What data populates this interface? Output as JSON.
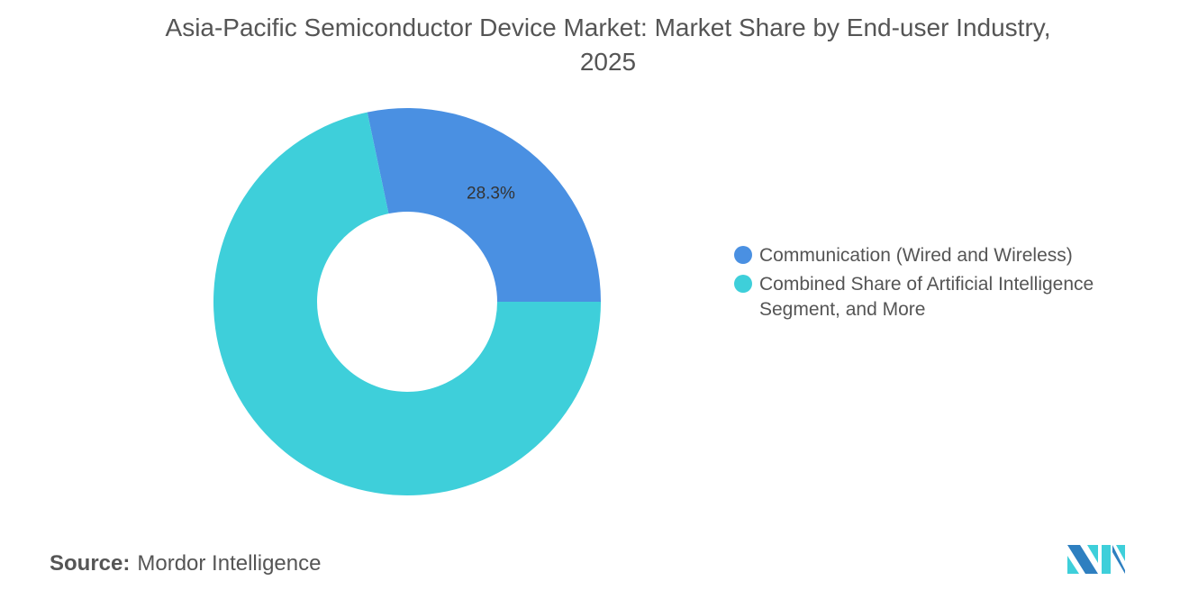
{
  "chart_data": {
    "type": "pie",
    "donut": true,
    "title": "Asia-Pacific Semiconductor Device Market: Market Share by End-user Industry, 2025",
    "series": [
      {
        "name": "Communication (Wired and Wireless)",
        "value": 28.3,
        "label": "28.3%",
        "color": "#4a90e2"
      },
      {
        "name": "Combined Share of Artificial Intelligence Segment, and More",
        "value": 71.7,
        "label": "",
        "color": "#3ecfda"
      }
    ],
    "legend_position": "right"
  },
  "source": {
    "label": "Source:",
    "value": "Mordor Intelligence"
  },
  "logo": {
    "text": "Mordor Intelligence"
  }
}
